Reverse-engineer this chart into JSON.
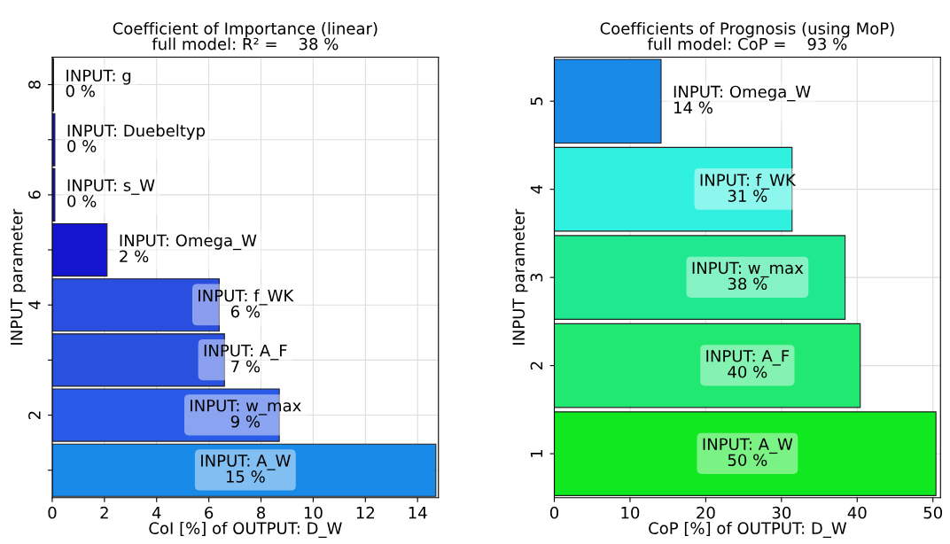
{
  "chart_data": [
    {
      "type": "bar",
      "orientation": "horizontal",
      "title": "Coefficient of Importance (linear)\nfull model: R² =    38 %",
      "xlabel": "CoI [%] of OUTPUT: D_W",
      "ylabel": "INPUT parameter",
      "categories": [
        "8",
        null,
        "6",
        null,
        "4",
        null,
        "2",
        null
      ],
      "values": [
        0.05,
        0.1,
        0.1,
        2.1,
        6.4,
        6.6,
        8.7,
        14.7
      ],
      "value_labels": [
        "INPUT: g\n0 %",
        "INPUT: Duebeltyp\n0 %",
        "INPUT: s_W\n0 %",
        "INPUT: Omega_W\n2 %",
        "INPUT: f_WK\n6 %",
        "INPUT: A_F\n7 %",
        "INPUT: w_max\n9 %",
        "INPUT: A_W\n15 %"
      ],
      "colors": [
        "#1a1a6e",
        "#1010c0",
        "#1010c0",
        "#1515d0",
        "#2a4ee0",
        "#2a52e0",
        "#2a5ae8",
        "#1a8ae8"
      ],
      "xlim": [
        0,
        14.8
      ],
      "xticks": [
        0,
        2,
        4,
        6,
        8,
        10,
        12,
        14
      ],
      "grid": true
    },
    {
      "type": "bar",
      "orientation": "horizontal",
      "title": "Coefficients of Prognosis (using MoP)\nfull model: CoP =    93 %",
      "xlabel": "CoP [%] of OUTPUT: D_W",
      "ylabel": "INPUT parameter",
      "categories": [
        "5",
        "4",
        "3",
        "2",
        "1"
      ],
      "values": [
        14.1,
        31.4,
        38.4,
        40.4,
        50.4
      ],
      "value_labels": [
        "INPUT: Omega_W\n14 %",
        "INPUT: f_WK\n31 %",
        "INPUT: w_max\n38 %",
        "INPUT: A_F\n40 %",
        "INPUT: A_W\n50 %"
      ],
      "colors": [
        "#1a8ae8",
        "#30f0e0",
        "#20e890",
        "#20e870",
        "#10e820"
      ],
      "xlim": [
        0,
        51
      ],
      "xticks": [
        0,
        10,
        20,
        30,
        40,
        50
      ],
      "grid": true
    }
  ]
}
